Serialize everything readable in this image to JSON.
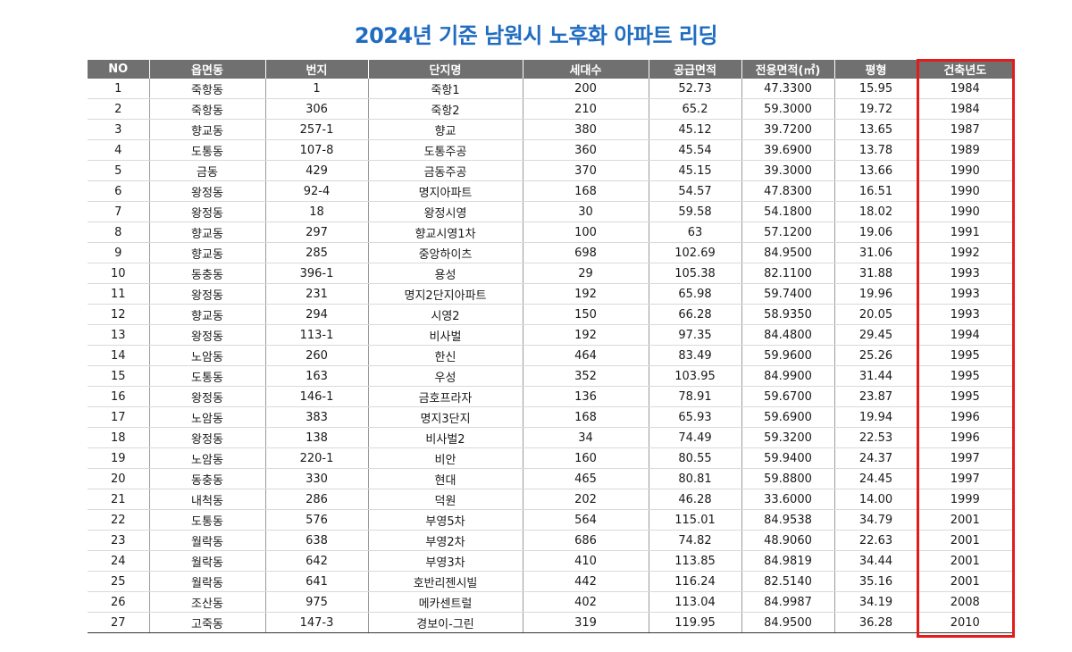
{
  "title": "2024년 기준 남원시 노후화 아파트 리딩",
  "highlight_color": "#e41b1b",
  "title_color": "#1f6cc0",
  "header_bg": "#707070",
  "highlighted_column": "건축년도",
  "columns": [
    "NO",
    "읍면동",
    "번지",
    "단지명",
    "세대수",
    "공급면적",
    "전용면적(㎡)",
    "평형",
    "건축년도"
  ],
  "rows": [
    [
      "1",
      "죽항동",
      "1",
      "죽항1",
      "200",
      "52.73",
      "47.3300",
      "15.95",
      "1984"
    ],
    [
      "2",
      "죽항동",
      "306",
      "죽항2",
      "210",
      "65.2",
      "59.3000",
      "19.72",
      "1984"
    ],
    [
      "3",
      "향교동",
      "257-1",
      "향교",
      "380",
      "45.12",
      "39.7200",
      "13.65",
      "1987"
    ],
    [
      "4",
      "도통동",
      "107-8",
      "도통주공",
      "360",
      "45.54",
      "39.6900",
      "13.78",
      "1989"
    ],
    [
      "5",
      "금동",
      "429",
      "금동주공",
      "370",
      "45.15",
      "39.3000",
      "13.66",
      "1990"
    ],
    [
      "6",
      "왕정동",
      "92-4",
      "명지아파트",
      "168",
      "54.57",
      "47.8300",
      "16.51",
      "1990"
    ],
    [
      "7",
      "왕정동",
      "18",
      "왕정시영",
      "30",
      "59.58",
      "54.1800",
      "18.02",
      "1990"
    ],
    [
      "8",
      "향교동",
      "297",
      "향교시영1차",
      "100",
      "63",
      "57.1200",
      "19.06",
      "1991"
    ],
    [
      "9",
      "향교동",
      "285",
      "중앙하이츠",
      "698",
      "102.69",
      "84.9500",
      "31.06",
      "1992"
    ],
    [
      "10",
      "동충동",
      "396-1",
      "용성",
      "29",
      "105.38",
      "82.1100",
      "31.88",
      "1993"
    ],
    [
      "11",
      "왕정동",
      "231",
      "명지2단지아파트",
      "192",
      "65.98",
      "59.7400",
      "19.96",
      "1993"
    ],
    [
      "12",
      "향교동",
      "294",
      "시영2",
      "150",
      "66.28",
      "58.9350",
      "20.05",
      "1993"
    ],
    [
      "13",
      "왕정동",
      "113-1",
      "비사벌",
      "192",
      "97.35",
      "84.4800",
      "29.45",
      "1994"
    ],
    [
      "14",
      "노암동",
      "260",
      "한신",
      "464",
      "83.49",
      "59.9600",
      "25.26",
      "1995"
    ],
    [
      "15",
      "도통동",
      "163",
      "우성",
      "352",
      "103.95",
      "84.9900",
      "31.44",
      "1995"
    ],
    [
      "16",
      "왕정동",
      "146-1",
      "금호프라자",
      "136",
      "78.91",
      "59.6700",
      "23.87",
      "1995"
    ],
    [
      "17",
      "노암동",
      "383",
      "명지3단지",
      "168",
      "65.93",
      "59.6900",
      "19.94",
      "1996"
    ],
    [
      "18",
      "왕정동",
      "138",
      "비사벌2",
      "34",
      "74.49",
      "59.3200",
      "22.53",
      "1996"
    ],
    [
      "19",
      "노암동",
      "220-1",
      "비안",
      "160",
      "80.55",
      "59.9400",
      "24.37",
      "1997"
    ],
    [
      "20",
      "동충동",
      "330",
      "현대",
      "465",
      "80.81",
      "59.8800",
      "24.45",
      "1997"
    ],
    [
      "21",
      "내척동",
      "286",
      "덕원",
      "202",
      "46.28",
      "33.6000",
      "14.00",
      "1999"
    ],
    [
      "22",
      "도통동",
      "576",
      "부영5차",
      "564",
      "115.01",
      "84.9538",
      "34.79",
      "2001"
    ],
    [
      "23",
      "월락동",
      "638",
      "부영2차",
      "686",
      "74.82",
      "48.9060",
      "22.63",
      "2001"
    ],
    [
      "24",
      "월락동",
      "642",
      "부영3차",
      "410",
      "113.85",
      "84.9819",
      "34.44",
      "2001"
    ],
    [
      "25",
      "월락동",
      "641",
      "호반리젠시빌",
      "442",
      "116.24",
      "82.5140",
      "35.16",
      "2001"
    ],
    [
      "26",
      "조산동",
      "975",
      "메카센트럴",
      "402",
      "113.04",
      "84.9987",
      "34.19",
      "2008"
    ],
    [
      "27",
      "고죽동",
      "147-3",
      "경보이-그린",
      "319",
      "119.95",
      "84.9500",
      "36.28",
      "2010"
    ]
  ]
}
